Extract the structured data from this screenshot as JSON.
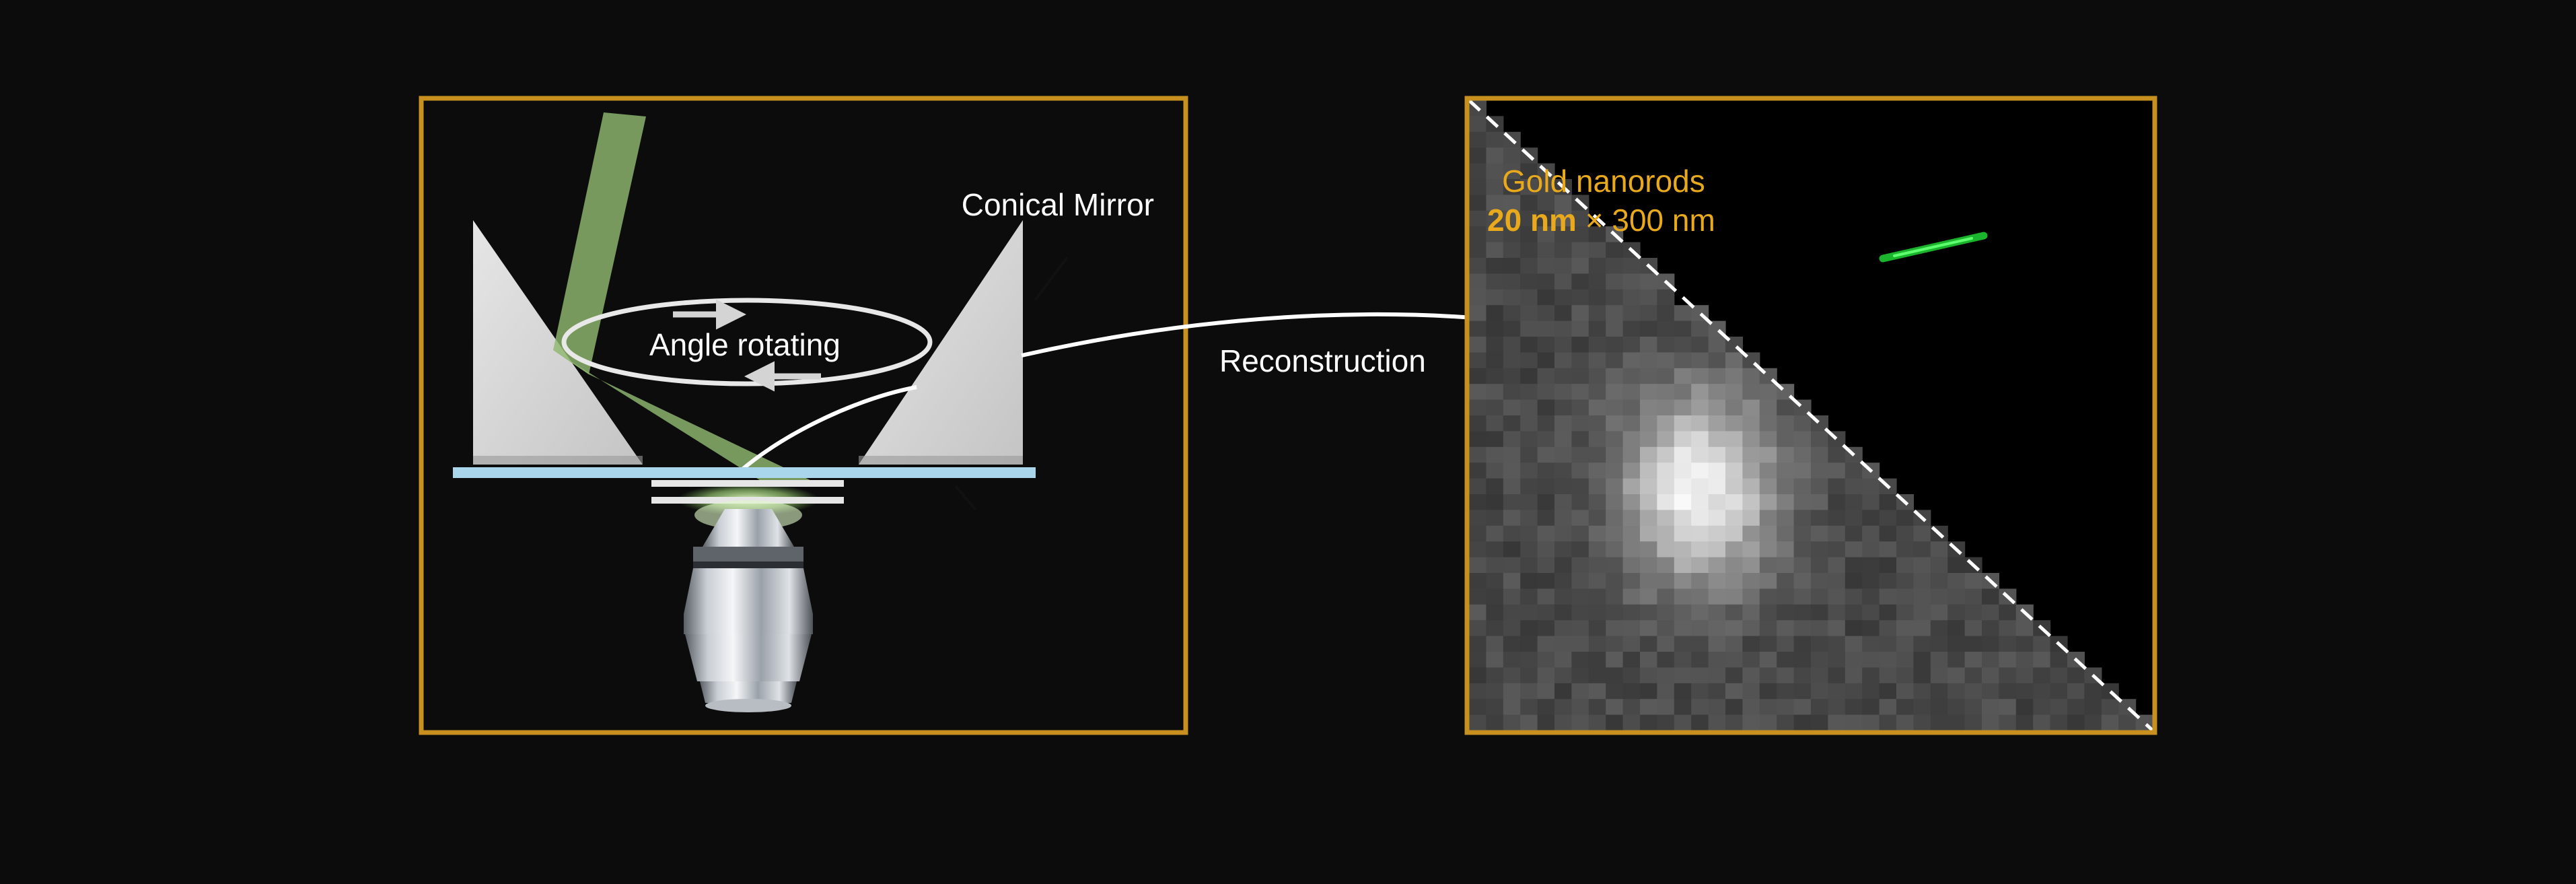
{
  "colors": {
    "background": "#0c0c0c",
    "frame": "#c8901e",
    "label_gold": "#e8a91c",
    "beam_green": "#8fb86f",
    "slide_blue": "#a9d6ea",
    "nanorod_green": "#1fc832"
  },
  "left_panel": {
    "conical_mirror_label": "Conical Mirror",
    "rotation_label": "Angle rotating"
  },
  "arrow_label": "Reconstruction",
  "right_panel": {
    "title": "Gold nanorods",
    "size_bold": "20 nm",
    "size_rest": " × 300 nm"
  }
}
